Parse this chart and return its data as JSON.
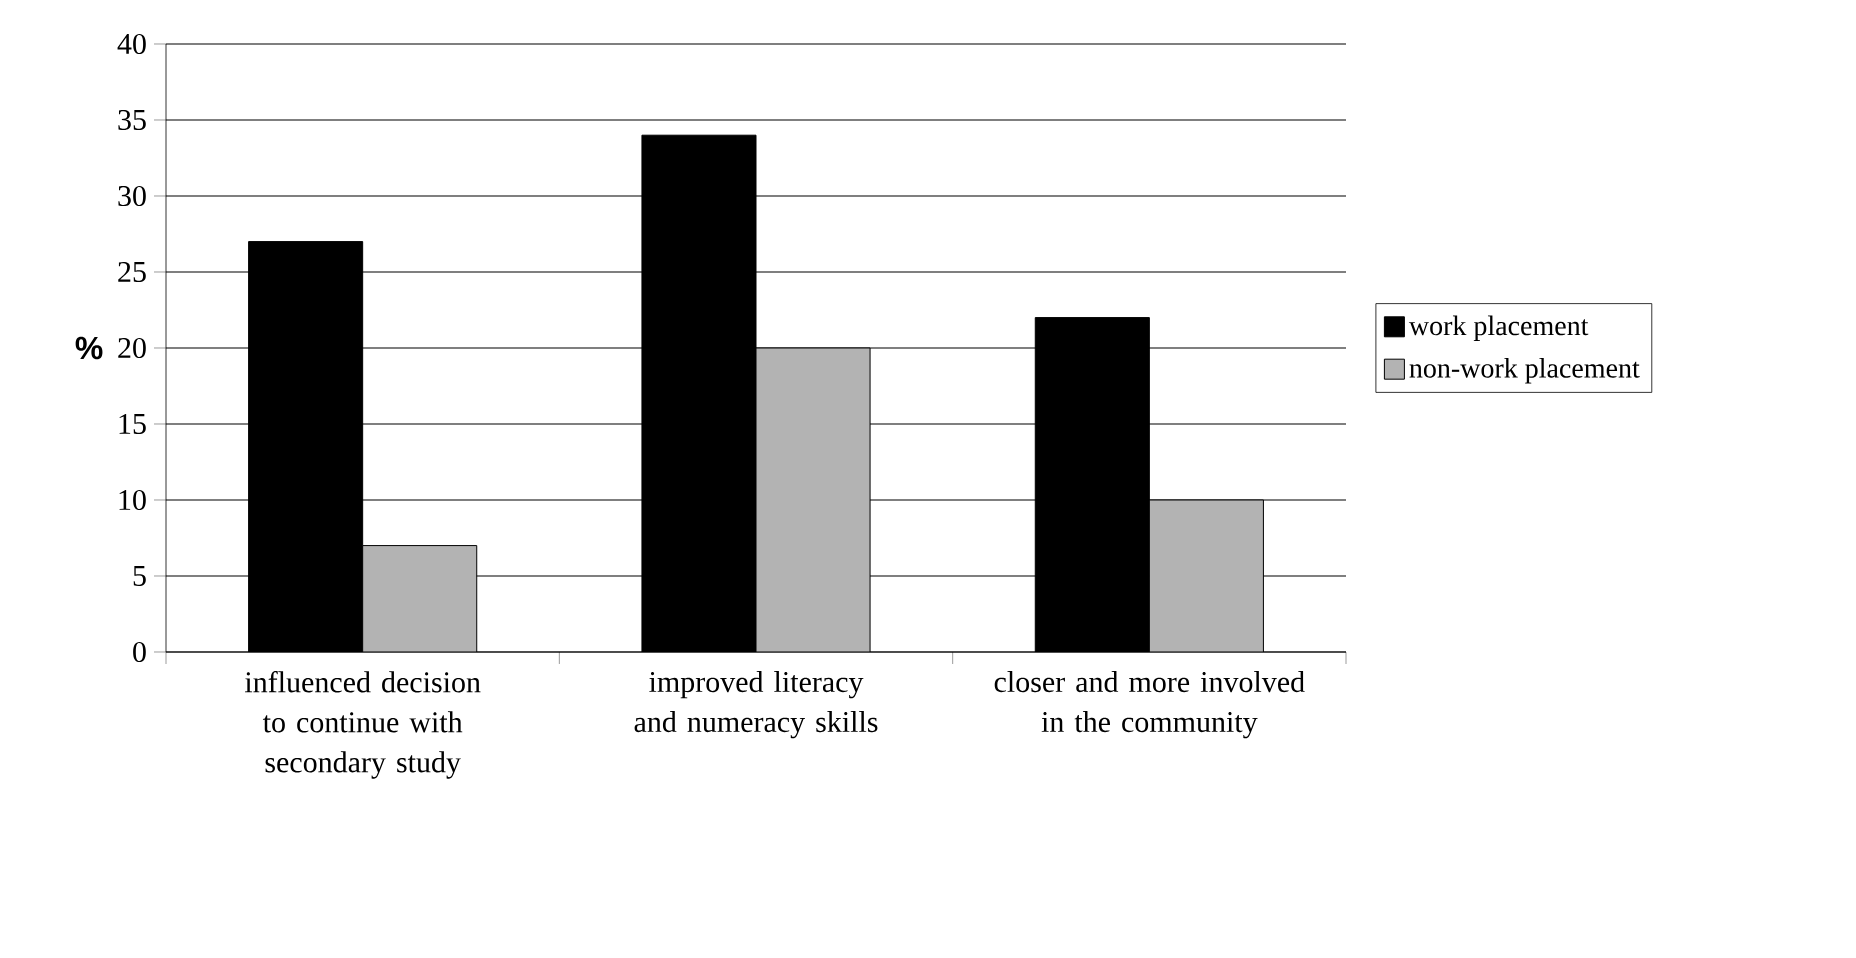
{
  "chart_data": {
    "type": "bar",
    "ylabel": "%",
    "categories": [
      "influenced decision to continue with secondary study",
      "improved literacy and numeracy skills",
      "closer and more involved in the community"
    ],
    "series": [
      {
        "name": "work placement",
        "color": "#000000",
        "values": [
          27,
          34,
          22
        ]
      },
      {
        "name": "non-work placement",
        "color": "#b3b3b3",
        "values": [
          7,
          20,
          10
        ]
      }
    ],
    "ylim": [
      0,
      40
    ],
    "yticks": [
      0,
      5,
      10,
      15,
      20,
      25,
      30,
      35,
      40
    ],
    "grid": "y",
    "legend": "right"
  }
}
